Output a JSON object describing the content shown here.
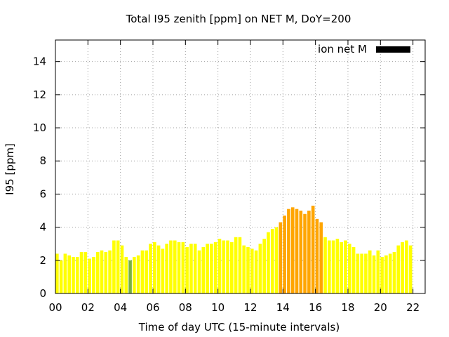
{
  "chart_data": {
    "type": "bar",
    "title": "Total I95 zenith [ppm] on NET M, DoY=200",
    "xlabel": "Time of day UTC (15-minute intervals)",
    "ylabel": "I95 [ppm]",
    "ylim": [
      0,
      15.3
    ],
    "xlim": [
      0,
      22.75
    ],
    "bar_width_hours": 0.2,
    "x_ticks": [
      {
        "value": 0,
        "label": "00"
      },
      {
        "value": 2,
        "label": "02"
      },
      {
        "value": 4,
        "label": "04"
      },
      {
        "value": 6,
        "label": "06"
      },
      {
        "value": 8,
        "label": "08"
      },
      {
        "value": 10,
        "label": "10"
      },
      {
        "value": 12,
        "label": "12"
      },
      {
        "value": 14,
        "label": "14"
      },
      {
        "value": 16,
        "label": "16"
      },
      {
        "value": 18,
        "label": "18"
      },
      {
        "value": 20,
        "label": "20"
      },
      {
        "value": 22,
        "label": "22"
      }
    ],
    "y_ticks": [
      0,
      2,
      4,
      6,
      8,
      10,
      12,
      14
    ],
    "grid": true,
    "legend": {
      "label": "ion net M",
      "placement": "top-right",
      "color": "#000000"
    },
    "colors": {
      "low": "#ffff00",
      "medium": "#ffa500",
      "green": "#77b042"
    },
    "series": [
      {
        "name": "ion net M",
        "interval_minutes": 15,
        "start_hour": 0,
        "values": [
          2.4,
          2.0,
          2.4,
          2.3,
          2.2,
          2.2,
          2.5,
          2.5,
          2.1,
          2.2,
          2.5,
          2.6,
          2.5,
          2.6,
          3.2,
          3.2,
          2.9,
          2.2,
          2.0,
          2.2,
          2.3,
          2.6,
          2.6,
          3.0,
          3.1,
          2.9,
          2.7,
          3.0,
          3.2,
          3.2,
          3.1,
          3.1,
          2.8,
          3.0,
          3.0,
          2.6,
          2.8,
          3.0,
          3.0,
          3.1,
          3.3,
          3.2,
          3.2,
          3.1,
          3.4,
          3.4,
          2.9,
          2.8,
          2.7,
          2.6,
          3.0,
          3.3,
          3.7,
          3.9,
          4.0,
          4.3,
          4.7,
          5.1,
          5.2,
          5.1,
          5.0,
          4.8,
          5.0,
          5.3,
          4.5,
          4.3,
          3.4,
          3.2,
          3.2,
          3.3,
          3.1,
          3.2,
          3.0,
          2.8,
          2.4,
          2.4,
          2.4,
          2.6,
          2.3,
          2.6,
          2.2,
          2.3,
          2.4,
          2.5,
          2.9,
          3.1,
          3.2,
          2.9
        ],
        "colors": [
          "low",
          "low",
          "low",
          "low",
          "low",
          "low",
          "low",
          "low",
          "low",
          "low",
          "low",
          "low",
          "low",
          "low",
          "low",
          "low",
          "low",
          "low",
          "green",
          "low",
          "low",
          "low",
          "low",
          "low",
          "low",
          "low",
          "low",
          "low",
          "low",
          "low",
          "low",
          "low",
          "low",
          "low",
          "low",
          "low",
          "low",
          "low",
          "low",
          "low",
          "low",
          "low",
          "low",
          "low",
          "low",
          "low",
          "low",
          "low",
          "low",
          "low",
          "low",
          "low",
          "low",
          "low",
          "low",
          "medium",
          "medium",
          "medium",
          "medium",
          "medium",
          "medium",
          "medium",
          "medium",
          "medium",
          "medium",
          "medium",
          "low",
          "low",
          "low",
          "low",
          "low",
          "low",
          "low",
          "low",
          "low",
          "low",
          "low",
          "low",
          "low",
          "low",
          "low",
          "low",
          "low",
          "low",
          "low",
          "low",
          "low",
          "low"
        ]
      }
    ]
  }
}
